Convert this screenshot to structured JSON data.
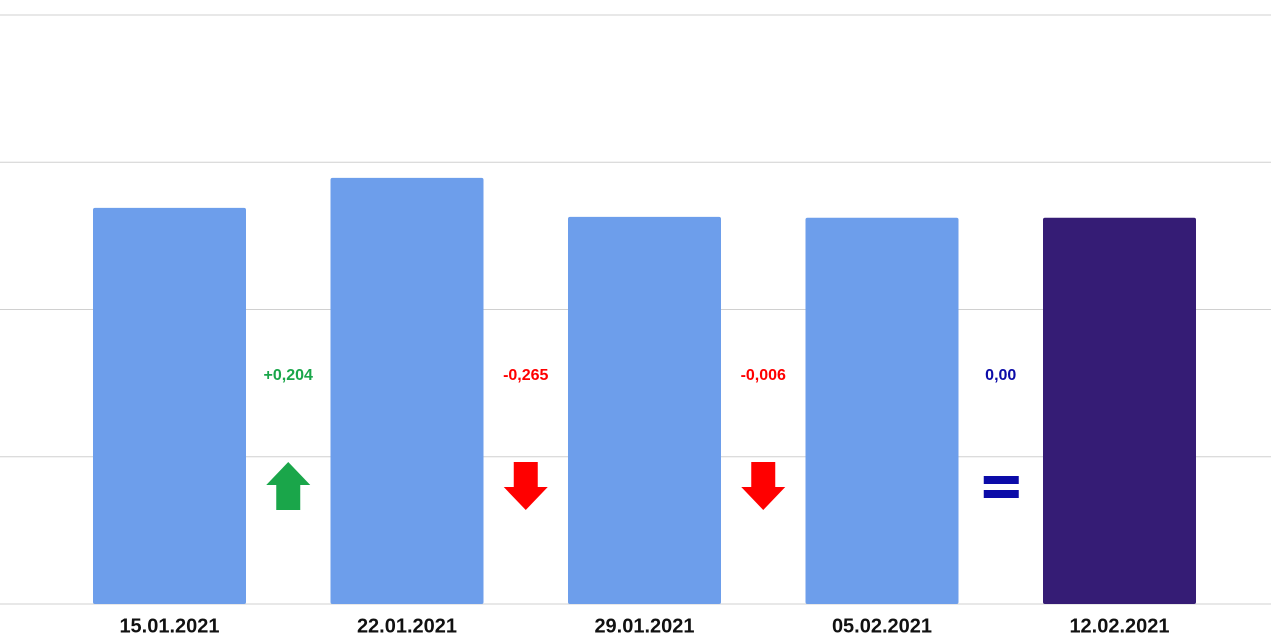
{
  "chart_data": {
    "type": "bar",
    "categories": [
      "15.01.2021",
      "22.01.2021",
      "29.01.2021",
      "05.02.2021",
      "12.02.2021"
    ],
    "values": [
      2.69,
      2.894,
      2.629,
      2.623,
      2.623
    ],
    "colors": [
      "#6d9eeb",
      "#6d9eeb",
      "#6d9eeb",
      "#6d9eeb",
      "#351c75"
    ],
    "ylim": [
      0,
      4
    ],
    "yticks": [
      0,
      1,
      2,
      3,
      4
    ],
    "grid": true,
    "changes": {
      "values": [
        0.204,
        -0.265,
        -0.006,
        0
      ],
      "value_labels": [
        "+0,204",
        "-0,265",
        "-0,006",
        "0,00"
      ],
      "colors": [
        "#1aa64a",
        "#ff0000",
        "#ff0000",
        "#0b0ba8"
      ]
    }
  }
}
